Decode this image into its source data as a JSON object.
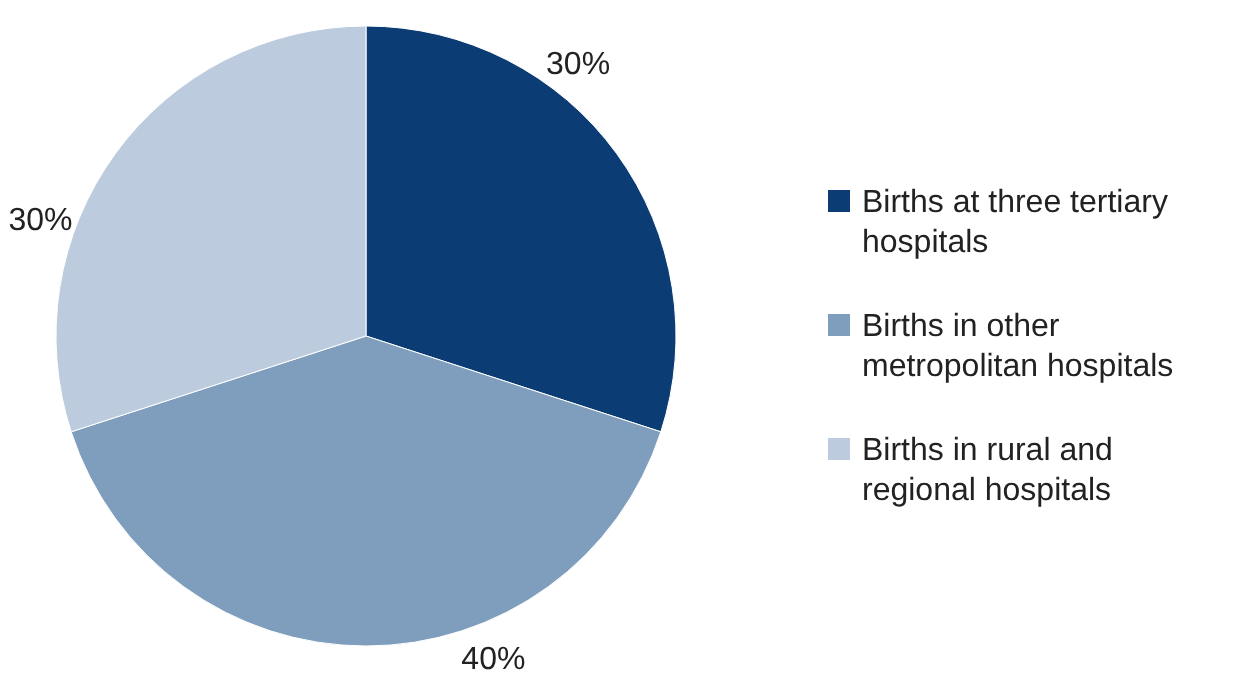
{
  "chart_data": {
    "type": "pie",
    "categories": [
      "Births at three tertiary hospitals",
      "Births in other metropolitan hospitals",
      "Births in rural and regional hospitals"
    ],
    "values": [
      30,
      40,
      30
    ],
    "value_labels": [
      "30%",
      "40%",
      "30%"
    ],
    "colors": [
      "#0b3d74",
      "#7f9ebd",
      "#bccbdd"
    ],
    "legend": "right"
  }
}
